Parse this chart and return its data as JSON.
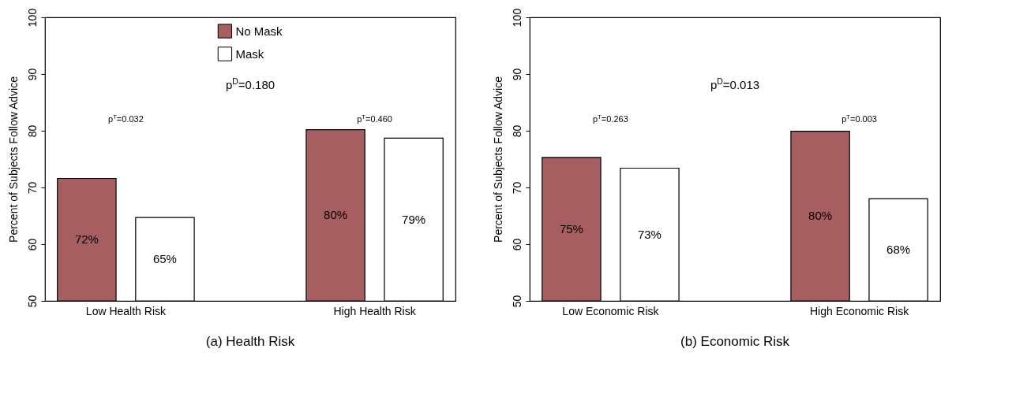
{
  "chart_data": [
    {
      "type": "bar",
      "title": "(a)  Health Risk",
      "ylabel": "Percent of Subjects Follow Advice",
      "categories": [
        "Low Health Risk",
        "High Health Risk"
      ],
      "series": [
        {
          "name": "No Mask",
          "color": "#a65e60",
          "values": [
            71.6,
            80.2
          ],
          "value_labels": [
            "72%",
            "80%"
          ]
        },
        {
          "name": "Mask",
          "color": "#ffffff",
          "values": [
            64.7,
            78.7
          ],
          "value_labels": [
            "65%",
            "79%"
          ]
        }
      ],
      "ylim": [
        50,
        100
      ],
      "yticks": [
        50,
        60,
        70,
        80,
        90,
        100
      ],
      "grid": false,
      "legend": "top",
      "annotations": [
        "p$^{T}$=0.032",
        "p$^{T}$=0.460",
        "p$^{D}$=0.180"
      ]
    },
    {
      "type": "bar",
      "title": "(b)  Economic Risk",
      "ylabel": "Percent of Subjects Follow Advice",
      "categories": [
        "Low Economic Risk",
        "High Economic Risk"
      ],
      "series": [
        {
          "name": "No Mask",
          "color": "#a65e60",
          "values": [
            75.3,
            79.9
          ],
          "value_labels": [
            "75%",
            "80%"
          ]
        },
        {
          "name": "Mask",
          "color": "#ffffff",
          "values": [
            73.4,
            68.0
          ],
          "value_labels": [
            "73%",
            "68%"
          ]
        }
      ],
      "ylim": [
        50,
        100
      ],
      "yticks": [
        50,
        60,
        70,
        80,
        90,
        100
      ],
      "grid": false,
      "legend": "top",
      "annotations": [
        "p$^{T}$=0.263",
        "p$^{T}$=0.003",
        "p$^{D}$=0.013"
      ]
    }
  ]
}
